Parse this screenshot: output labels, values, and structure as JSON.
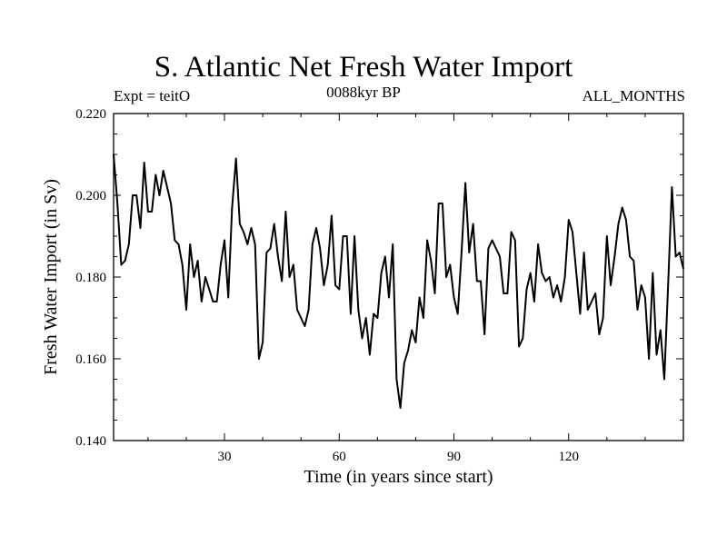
{
  "chart_data": {
    "type": "line",
    "title": "S. Atlantic Net Fresh Water Import",
    "subtitle_left": "Expt = teitO",
    "subtitle_center": "0088kyr BP",
    "subtitle_right": "ALL_MONTHS",
    "xlabel": "Time (in years since start)",
    "ylabel": "Fresh Water Import (in Sv)",
    "xlim": [
      1,
      150
    ],
    "ylim": [
      0.14,
      0.22
    ],
    "xticks": [
      30,
      60,
      90,
      120
    ],
    "xtick_labels": [
      "30",
      "60",
      "90",
      "120"
    ],
    "yticks": [
      0.14,
      0.16,
      0.18,
      0.2,
      0.22
    ],
    "ytick_labels": [
      "0.140",
      "0.160",
      "0.180",
      "0.200",
      "0.220"
    ],
    "grid": false,
    "series": [
      {
        "name": "fresh water import",
        "x": [
          1,
          2,
          3,
          4,
          5,
          6,
          7,
          8,
          9,
          10,
          11,
          12,
          13,
          14,
          15,
          16,
          17,
          18,
          19,
          20,
          21,
          22,
          23,
          24,
          25,
          26,
          27,
          28,
          29,
          30,
          31,
          32,
          33,
          34,
          35,
          36,
          37,
          38,
          39,
          40,
          41,
          42,
          43,
          44,
          45,
          46,
          47,
          48,
          49,
          50,
          51,
          52,
          53,
          54,
          55,
          56,
          57,
          58,
          59,
          60,
          61,
          62,
          63,
          64,
          65,
          66,
          67,
          68,
          69,
          70,
          71,
          72,
          73,
          74,
          75,
          76,
          77,
          78,
          79,
          80,
          81,
          82,
          83,
          84,
          85,
          86,
          87,
          88,
          89,
          90,
          91,
          92,
          93,
          94,
          95,
          96,
          97,
          98,
          99,
          100,
          101,
          102,
          103,
          104,
          105,
          106,
          107,
          108,
          109,
          110,
          111,
          112,
          113,
          114,
          115,
          116,
          117,
          118,
          119,
          120,
          121,
          122,
          123,
          124,
          125,
          126,
          127,
          128,
          129,
          130,
          131,
          132,
          133,
          134,
          135,
          136,
          137,
          138,
          139,
          140,
          141,
          142,
          143,
          144,
          145,
          146,
          147,
          148,
          149,
          150
        ],
        "values": [
          0.21,
          0.198,
          0.183,
          0.184,
          0.188,
          0.2,
          0.2,
          0.192,
          0.208,
          0.196,
          0.196,
          0.205,
          0.2,
          0.206,
          0.202,
          0.198,
          0.189,
          0.188,
          0.183,
          0.172,
          0.188,
          0.18,
          0.184,
          0.174,
          0.18,
          0.177,
          0.174,
          0.174,
          0.183,
          0.189,
          0.175,
          0.197,
          0.209,
          0.193,
          0.191,
          0.188,
          0.192,
          0.188,
          0.16,
          0.164,
          0.186,
          0.187,
          0.193,
          0.185,
          0.179,
          0.196,
          0.18,
          0.183,
          0.172,
          0.17,
          0.168,
          0.172,
          0.188,
          0.192,
          0.187,
          0.178,
          0.183,
          0.195,
          0.178,
          0.177,
          0.19,
          0.19,
          0.171,
          0.19,
          0.172,
          0.165,
          0.17,
          0.161,
          0.171,
          0.17,
          0.181,
          0.185,
          0.175,
          0.188,
          0.155,
          0.148,
          0.159,
          0.162,
          0.167,
          0.164,
          0.175,
          0.17,
          0.189,
          0.184,
          0.176,
          0.198,
          0.198,
          0.18,
          0.183,
          0.175,
          0.171,
          0.186,
          0.203,
          0.186,
          0.193,
          0.179,
          0.179,
          0.166,
          0.187,
          0.189,
          0.187,
          0.185,
          0.176,
          0.176,
          0.191,
          0.189,
          0.163,
          0.165,
          0.177,
          0.181,
          0.174,
          0.188,
          0.181,
          0.179,
          0.18,
          0.175,
          0.178,
          0.174,
          0.18,
          0.194,
          0.191,
          0.181,
          0.171,
          0.186,
          0.172,
          0.174,
          0.176,
          0.166,
          0.17,
          0.19,
          0.178,
          0.185,
          0.193,
          0.197,
          0.194,
          0.185,
          0.184,
          0.172,
          0.178,
          0.175,
          0.16,
          0.181,
          0.161,
          0.167,
          0.155,
          0.178,
          0.202,
          0.185,
          0.186,
          0.182
        ]
      }
    ]
  }
}
